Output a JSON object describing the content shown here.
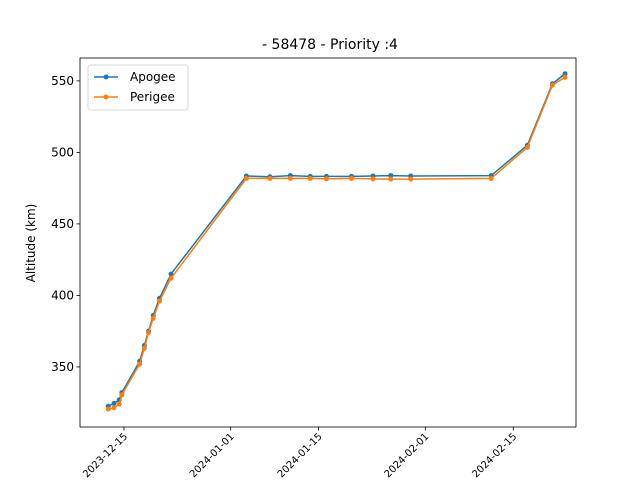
{
  "chart_data": {
    "type": "line",
    "title": "- 58478 - Priority :4",
    "xlabel": "",
    "ylabel": "Altitude (km)",
    "x_type": "date",
    "xlim": [
      "2023-12-08",
      "2024-02-25"
    ],
    "ylim": [
      308,
      566
    ],
    "x_ticks": [
      {
        "date": "2023-12-15",
        "label": "2023-12-15"
      },
      {
        "date": "2024-01-01",
        "label": "2024-01-01"
      },
      {
        "date": "2024-01-15",
        "label": "2024-01-15"
      },
      {
        "date": "2024-02-01",
        "label": "2024-02-01"
      },
      {
        "date": "2024-02-15",
        "label": "2024-02-15"
      }
    ],
    "y_ticks": [
      350,
      400,
      450,
      500,
      550
    ],
    "grid": false,
    "legend_position": "top-left",
    "series": [
      {
        "name": "Apogee",
        "color": "#1f77b4",
        "points": [
          {
            "x": "2023-12-12T12:00",
            "y": 322.5
          },
          {
            "x": "2023-12-13T10:00",
            "y": 324.5
          },
          {
            "x": "2023-12-14T06:00",
            "y": 327
          },
          {
            "x": "2023-12-14T16:00",
            "y": 332
          },
          {
            "x": "2023-12-17T12:00",
            "y": 354
          },
          {
            "x": "2023-12-18T06:00",
            "y": 365
          },
          {
            "x": "2023-12-18T22:00",
            "y": 375
          },
          {
            "x": "2023-12-19T16:00",
            "y": 386
          },
          {
            "x": "2023-12-20T16:00",
            "y": 398
          },
          {
            "x": "2023-12-22T12:00",
            "y": 415
          },
          {
            "x": "2024-01-03T12:00",
            "y": 483.5
          },
          {
            "x": "2024-01-07T06:00",
            "y": 483
          },
          {
            "x": "2024-01-10T12:00",
            "y": 483.8
          },
          {
            "x": "2024-01-13T16:00",
            "y": 483.2
          },
          {
            "x": "2024-01-16T06:00",
            "y": 483.2
          },
          {
            "x": "2024-01-20T06:00",
            "y": 483.2
          },
          {
            "x": "2024-01-23T16:00",
            "y": 483.5
          },
          {
            "x": "2024-01-26T12:00",
            "y": 483.8
          },
          {
            "x": "2024-01-29T16:00",
            "y": 483.5
          },
          {
            "x": "2024-02-11T12:00",
            "y": 483.8
          },
          {
            "x": "2024-02-17T06:00",
            "y": 505
          },
          {
            "x": "2024-02-21T06:00",
            "y": 548
          },
          {
            "x": "2024-02-23T06:00",
            "y": 555
          }
        ]
      },
      {
        "name": "Perigee",
        "color": "#ff7f0e",
        "points": [
          {
            "x": "2023-12-12T12:00",
            "y": 320.5
          },
          {
            "x": "2023-12-13T10:00",
            "y": 321.5
          },
          {
            "x": "2023-12-14T06:00",
            "y": 324
          },
          {
            "x": "2023-12-14T16:00",
            "y": 330.5
          },
          {
            "x": "2023-12-17T12:00",
            "y": 352
          },
          {
            "x": "2023-12-18T06:00",
            "y": 363
          },
          {
            "x": "2023-12-18T22:00",
            "y": 374
          },
          {
            "x": "2023-12-19T16:00",
            "y": 384
          },
          {
            "x": "2023-12-20T16:00",
            "y": 396
          },
          {
            "x": "2023-12-22T12:00",
            "y": 412
          },
          {
            "x": "2024-01-03T12:00",
            "y": 481.8
          },
          {
            "x": "2024-01-07T06:00",
            "y": 481.8
          },
          {
            "x": "2024-01-10T12:00",
            "y": 481.8
          },
          {
            "x": "2024-01-13T16:00",
            "y": 481.8
          },
          {
            "x": "2024-01-16T06:00",
            "y": 481.5
          },
          {
            "x": "2024-01-20T06:00",
            "y": 481.8
          },
          {
            "x": "2024-01-23T16:00",
            "y": 481.5
          },
          {
            "x": "2024-01-26T12:00",
            "y": 481.3
          },
          {
            "x": "2024-01-29T16:00",
            "y": 481.3
          },
          {
            "x": "2024-02-11T12:00",
            "y": 481.8
          },
          {
            "x": "2024-02-17T06:00",
            "y": 503.5
          },
          {
            "x": "2024-02-21T06:00",
            "y": 547
          },
          {
            "x": "2024-02-23T06:00",
            "y": 552.5
          }
        ]
      }
    ]
  }
}
